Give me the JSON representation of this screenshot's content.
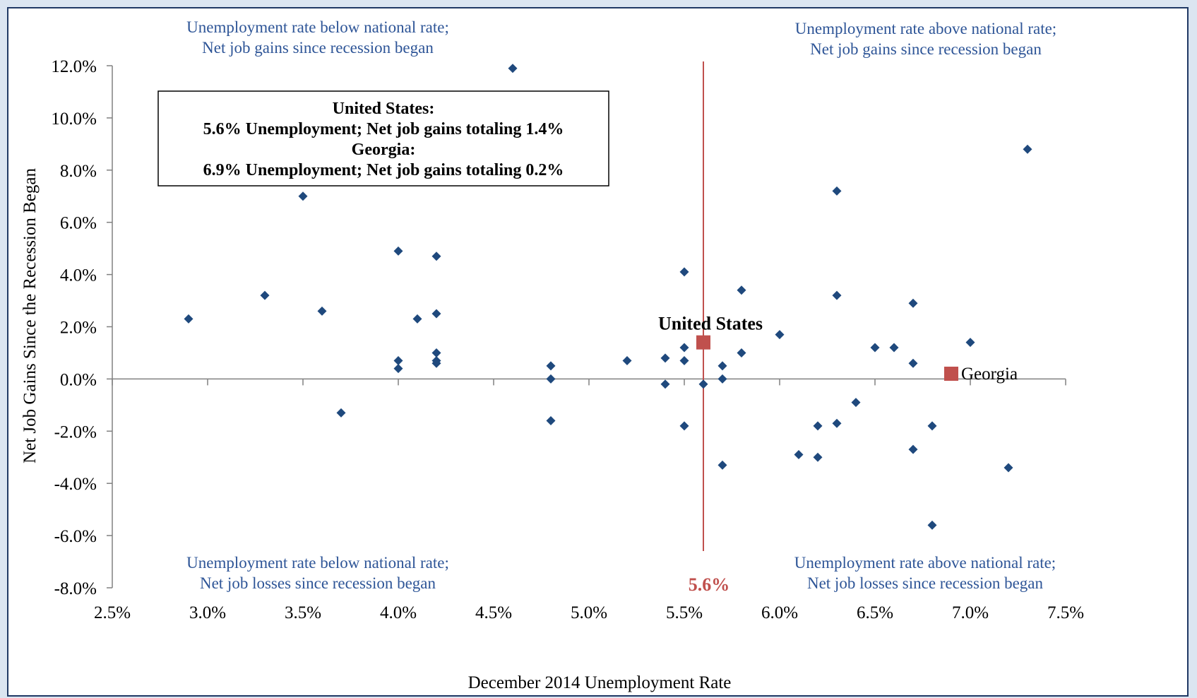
{
  "chart_data": {
    "type": "scatter",
    "xlabel": "December 2014 Unemployment Rate",
    "ylabel": "Net Job Gains Since the Recession Began",
    "xlim": [
      2.5,
      7.5
    ],
    "ylim": [
      -8.0,
      12.0
    ],
    "x_ticks": [
      2.5,
      3.0,
      3.5,
      4.0,
      4.5,
      5.0,
      5.5,
      6.0,
      6.5,
      7.0,
      7.5
    ],
    "x_tick_labels": [
      "2.5%",
      "3.0%",
      "3.5%",
      "4.0%",
      "4.5%",
      "5.0%",
      "5.5%",
      "6.0%",
      "6.5%",
      "7.0%",
      "7.5%"
    ],
    "y_ticks": [
      12.0,
      10.0,
      8.0,
      6.0,
      4.0,
      2.0,
      0.0,
      -2.0,
      -4.0,
      -6.0,
      -8.0
    ],
    "y_tick_labels": [
      "12.0%",
      "10.0%",
      "8.0%",
      "6.0%",
      "4.0%",
      "2.0%",
      "0.0%",
      "-2.0%",
      "-4.0%",
      "-6.0%",
      "-8.0%"
    ],
    "grid": false,
    "colors": {
      "states": "#1f497d",
      "highlight": "#c0504d",
      "quadrant_text": "#2e5597",
      "reference_line": "#c0504d"
    },
    "reference_line": {
      "x": 5.6,
      "label": "5.6%"
    },
    "quadrant_labels": {
      "top_left": [
        "Unemployment rate below national rate;",
        "Net job gains since recession began"
      ],
      "top_right": [
        "Unemployment rate above national rate;",
        "Net job gains since recession began"
      ],
      "bottom_left": [
        "Unemployment rate below national rate;",
        "Net job losses since recession began"
      ],
      "bottom_right": [
        "Unemployment rate above national rate;",
        "Net job losses since recession began"
      ]
    },
    "info_box": [
      "United States:",
      "5.6% Unemployment; Net job gains totaling 1.4%",
      "Georgia:",
      "6.9% Unemployment; Net job gains totaling 0.2%"
    ],
    "highlights": [
      {
        "name": "United States",
        "x": 5.6,
        "y": 1.4
      },
      {
        "name": "Georgia",
        "x": 6.9,
        "y": 0.2
      }
    ],
    "points": [
      [
        2.9,
        2.3
      ],
      [
        3.3,
        3.2
      ],
      [
        3.5,
        7.0
      ],
      [
        3.6,
        2.6
      ],
      [
        3.7,
        -1.3
      ],
      [
        4.0,
        4.9
      ],
      [
        4.0,
        0.7
      ],
      [
        4.0,
        0.4
      ],
      [
        4.1,
        2.3
      ],
      [
        4.2,
        4.7
      ],
      [
        4.2,
        2.5
      ],
      [
        4.2,
        1.0
      ],
      [
        4.2,
        0.7
      ],
      [
        4.2,
        0.6
      ],
      [
        4.6,
        11.9
      ],
      [
        4.8,
        0.5
      ],
      [
        4.8,
        0.0
      ],
      [
        4.8,
        -1.6
      ],
      [
        5.2,
        0.7
      ],
      [
        5.4,
        0.8
      ],
      [
        5.4,
        -0.2
      ],
      [
        5.5,
        4.1
      ],
      [
        5.5,
        1.2
      ],
      [
        5.5,
        0.7
      ],
      [
        5.5,
        -1.8
      ],
      [
        5.6,
        -0.2
      ],
      [
        5.7,
        0.5
      ],
      [
        5.7,
        0.0
      ],
      [
        5.7,
        -3.3
      ],
      [
        5.8,
        3.4
      ],
      [
        5.8,
        1.0
      ],
      [
        6.0,
        1.7
      ],
      [
        6.1,
        -2.9
      ],
      [
        6.2,
        -1.8
      ],
      [
        6.2,
        -3.0
      ],
      [
        6.3,
        7.2
      ],
      [
        6.3,
        3.2
      ],
      [
        6.3,
        -1.7
      ],
      [
        6.4,
        -0.9
      ],
      [
        6.5,
        1.2
      ],
      [
        6.6,
        1.2
      ],
      [
        6.7,
        2.9
      ],
      [
        6.7,
        0.6
      ],
      [
        6.7,
        -2.7
      ],
      [
        6.8,
        -1.8
      ],
      [
        6.8,
        -5.6
      ],
      [
        7.0,
        1.4
      ],
      [
        7.2,
        -3.4
      ],
      [
        7.3,
        8.8
      ]
    ]
  }
}
